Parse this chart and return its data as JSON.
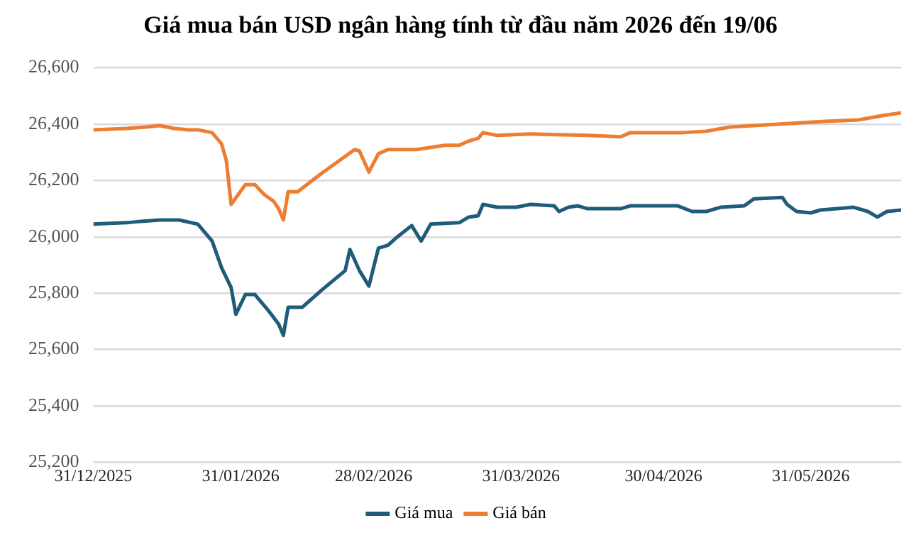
{
  "chart_data": {
    "type": "line",
    "title": "Giá mua bán USD ngân hàng tính từ đầu năm 2026 đến 19/06",
    "xlim": [
      "2025-12-31",
      "2026-06-19"
    ],
    "xticks": [
      {
        "value": "2025-12-31",
        "label": "31/12/2025"
      },
      {
        "value": "2026-01-31",
        "label": "31/01/2026"
      },
      {
        "value": "2026-02-28",
        "label": "28/02/2026"
      },
      {
        "value": "2026-03-31",
        "label": "31/03/2026"
      },
      {
        "value": "2026-04-30",
        "label": "30/04/2026"
      },
      {
        "value": "2026-05-31",
        "label": "31/05/2026"
      }
    ],
    "ylim": [
      25200,
      26600
    ],
    "yticks": [
      {
        "value": 25200,
        "label": "25,200"
      },
      {
        "value": 25400,
        "label": "25,400"
      },
      {
        "value": 25600,
        "label": "25,600"
      },
      {
        "value": 25800,
        "label": "25,800"
      },
      {
        "value": 26000,
        "label": "26,000"
      },
      {
        "value": 26200,
        "label": "26,200"
      },
      {
        "value": 26400,
        "label": "26,400"
      },
      {
        "value": 26600,
        "label": "26,600"
      }
    ],
    "grid": "y",
    "legend": "bottom",
    "marker": "none",
    "line_style": "solid",
    "series": [
      {
        "name": "Giá mua",
        "color": "#1f5c7a",
        "x": [
          "2025-12-31",
          "2026-01-07",
          "2026-01-10",
          "2026-01-14",
          "2026-01-18",
          "2026-01-22",
          "2026-01-25",
          "2026-01-27",
          "2026-01-29",
          "2026-01-30",
          "2026-02-01",
          "2026-02-03",
          "2026-02-06",
          "2026-02-08",
          "2026-02-09",
          "2026-02-10",
          "2026-02-13",
          "2026-02-17",
          "2026-02-22",
          "2026-02-23",
          "2026-02-25",
          "2026-02-27",
          "2026-03-01",
          "2026-03-03",
          "2026-03-05",
          "2026-03-08",
          "2026-03-10",
          "2026-03-12",
          "2026-03-18",
          "2026-03-20",
          "2026-03-22",
          "2026-03-23",
          "2026-03-26",
          "2026-03-30",
          "2026-04-02",
          "2026-04-07",
          "2026-04-08",
          "2026-04-10",
          "2026-04-12",
          "2026-04-14",
          "2026-04-21",
          "2026-04-23",
          "2026-05-03",
          "2026-05-06",
          "2026-05-09",
          "2026-05-12",
          "2026-05-17",
          "2026-05-19",
          "2026-05-25",
          "2026-05-26",
          "2026-05-28",
          "2026-05-31",
          "2026-06-02",
          "2026-06-09",
          "2026-06-12",
          "2026-06-14",
          "2026-06-16",
          "2026-06-19"
        ],
        "values": [
          26045,
          26050,
          26055,
          26060,
          26060,
          26045,
          25985,
          25890,
          25820,
          25725,
          25795,
          25795,
          25735,
          25690,
          25650,
          25750,
          25750,
          25810,
          25880,
          25955,
          25880,
          25825,
          25960,
          25970,
          26000,
          26040,
          25985,
          26045,
          26050,
          26070,
          26075,
          26115,
          26105,
          26105,
          26115,
          26110,
          26090,
          26105,
          26110,
          26100,
          26100,
          26110,
          26110,
          26090,
          26090,
          26105,
          26110,
          26135,
          26140,
          26115,
          26090,
          26085,
          26095,
          26105,
          26090,
          26070,
          26090,
          26095
        ]
      },
      {
        "name": "Giá bán",
        "color": "#ed7d31",
        "x": [
          "2025-12-31",
          "2026-01-07",
          "2026-01-11",
          "2026-01-14",
          "2026-01-17",
          "2026-01-20",
          "2026-01-22",
          "2026-01-25",
          "2026-01-27",
          "2026-01-28",
          "2026-01-29",
          "2026-02-01",
          "2026-02-03",
          "2026-02-05",
          "2026-02-07",
          "2026-02-08",
          "2026-02-09",
          "2026-02-10",
          "2026-02-12",
          "2026-02-17",
          "2026-02-24",
          "2026-02-25",
          "2026-02-27",
          "2026-03-01",
          "2026-03-03",
          "2026-03-09",
          "2026-03-15",
          "2026-03-18",
          "2026-03-20",
          "2026-03-22",
          "2026-03-23",
          "2026-03-26",
          "2026-04-02",
          "2026-04-14",
          "2026-04-21",
          "2026-04-23",
          "2026-05-04",
          "2026-05-09",
          "2026-05-14",
          "2026-05-24",
          "2026-06-03",
          "2026-06-10",
          "2026-06-15",
          "2026-06-19"
        ],
        "values": [
          26380,
          26385,
          26390,
          26395,
          26385,
          26380,
          26380,
          26370,
          26330,
          26270,
          26115,
          26185,
          26185,
          26150,
          26125,
          26100,
          26060,
          26160,
          26160,
          26225,
          26310,
          26305,
          26230,
          26295,
          26310,
          26310,
          26325,
          26325,
          26340,
          26350,
          26370,
          26360,
          26365,
          26360,
          26355,
          26370,
          26370,
          26375,
          26390,
          26400,
          26410,
          26415,
          26430,
          26440
        ]
      }
    ]
  }
}
